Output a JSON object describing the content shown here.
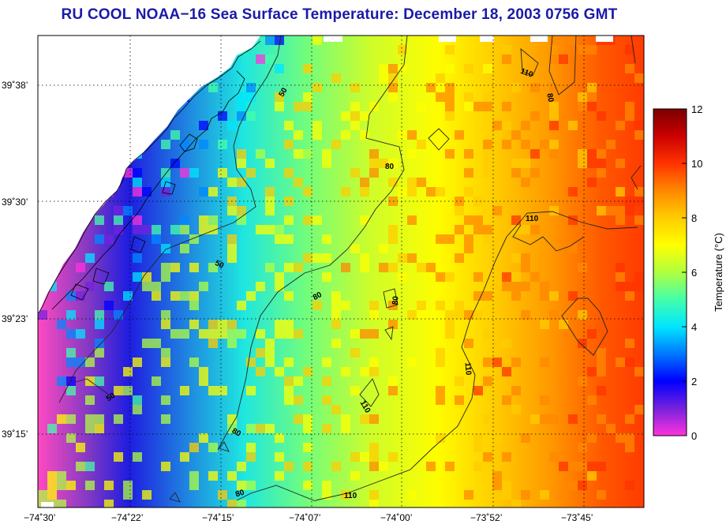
{
  "title": "RU COOL  NOAA−16  Sea Surface Temperature:  December 18, 2003 0756 GMT",
  "colorbar": {
    "label": "Temperature (°C)",
    "ticks": [
      "0",
      "2",
      "4",
      "6",
      "8",
      "10",
      "12"
    ],
    "range": [
      0,
      12
    ],
    "stops": [
      "#ff33dd",
      "#7722dd",
      "#0000ff",
      "#0088ff",
      "#00e6ff",
      "#44ffaa",
      "#b0ff40",
      "#ffff00",
      "#ffcc00",
      "#ff8800",
      "#ff3300",
      "#cc0000",
      "#7a0000"
    ]
  },
  "axes": {
    "x_ticks": [
      "−74˚30’",
      "−74˚22’",
      "−74˚15’",
      "−74˚07’",
      "−74˚00’",
      "−73˚52’",
      "−73˚45’"
    ],
    "y_ticks": [
      "39˚38’",
      "39˚30’",
      "39˚23’",
      "39˚15’"
    ]
  },
  "contours": [
    {
      "label": "50"
    },
    {
      "label": "50"
    },
    {
      "label": "50"
    },
    {
      "label": "80"
    },
    {
      "label": "80"
    },
    {
      "label": "80"
    },
    {
      "label": "80"
    },
    {
      "label": "80"
    },
    {
      "label": "80"
    },
    {
      "label": "110"
    },
    {
      "label": "110"
    },
    {
      "label": "110"
    },
    {
      "label": "110"
    },
    {
      "label": "110"
    }
  ]
}
